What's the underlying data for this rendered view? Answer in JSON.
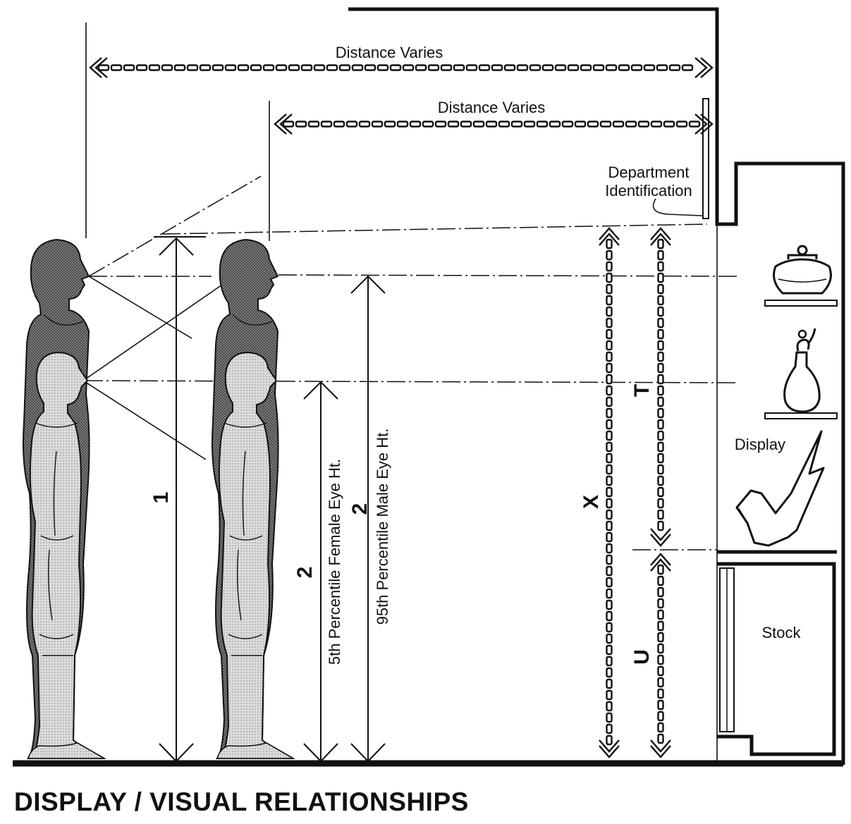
{
  "diagram": {
    "title": "DISPLAY / VISUAL RELATIONSHIPS",
    "labels": {
      "distance_upper": "Distance Varies",
      "distance_lower": "Distance Varies",
      "department_line1": "Department",
      "department_line2": "Identification",
      "display": "Display",
      "stock": "Stock",
      "female_eye": "5th Percentile Female Eye Ht.",
      "male_eye": "95th Percentile Male Eye Ht.",
      "dim_1": "1",
      "dim_2_female": "2",
      "dim_2_male": "2",
      "dim_x": "X",
      "dim_t": "T",
      "dim_u": "U"
    }
  }
}
